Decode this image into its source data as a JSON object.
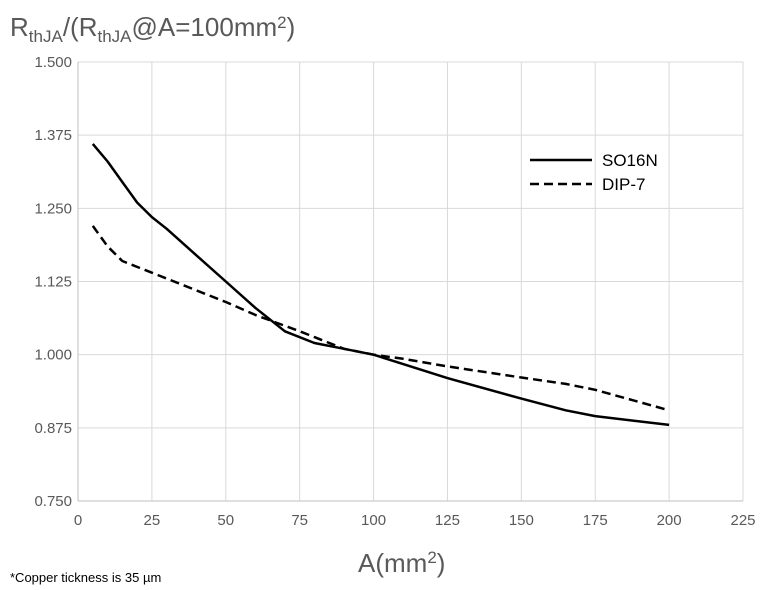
{
  "chart_data": {
    "type": "line",
    "title": "",
    "ylabel": {
      "main": "R",
      "sub": "thJA",
      "mid": "/(R",
      "sub2": "thJA",
      "tail": "@A=100mm",
      "sup": "2",
      "end": ")"
    },
    "xlabel": {
      "main": "A(mm",
      "sup": "2",
      "end": ")"
    },
    "xlim": [
      0,
      225
    ],
    "ylim": [
      0.75,
      1.5
    ],
    "xticks": [
      "0",
      "25",
      "50",
      "75",
      "100",
      "125",
      "150",
      "175",
      "200",
      "225"
    ],
    "yticks": [
      "0.750",
      "0.875",
      "1.000",
      "1.125",
      "1.250",
      "1.375",
      "1.500"
    ],
    "grid": true,
    "legend_position": "top-right",
    "series": [
      {
        "name": "SO16N",
        "style": "solid",
        "color": "#000000",
        "x": [
          5,
          10,
          15,
          20,
          25,
          30,
          40,
          50,
          60,
          70,
          80,
          90,
          100,
          125,
          150,
          165,
          175,
          200
        ],
        "y": [
          1.36,
          1.33,
          1.295,
          1.26,
          1.235,
          1.215,
          1.17,
          1.125,
          1.08,
          1.04,
          1.02,
          1.01,
          1.0,
          0.96,
          0.925,
          0.905,
          0.895,
          0.88
        ]
      },
      {
        "name": "DIP-7",
        "style": "dashed",
        "color": "#000000",
        "x": [
          5,
          10,
          15,
          20,
          25,
          40,
          50,
          60,
          75,
          80,
          90,
          100,
          110,
          125,
          150,
          165,
          175,
          200
        ],
        "y": [
          1.22,
          1.185,
          1.16,
          1.15,
          1.14,
          1.11,
          1.09,
          1.068,
          1.04,
          1.03,
          1.01,
          1.0,
          0.993,
          0.98,
          0.961,
          0.95,
          0.94,
          0.905
        ]
      }
    ],
    "footnote": "*Copper tickness is 35 µm"
  }
}
